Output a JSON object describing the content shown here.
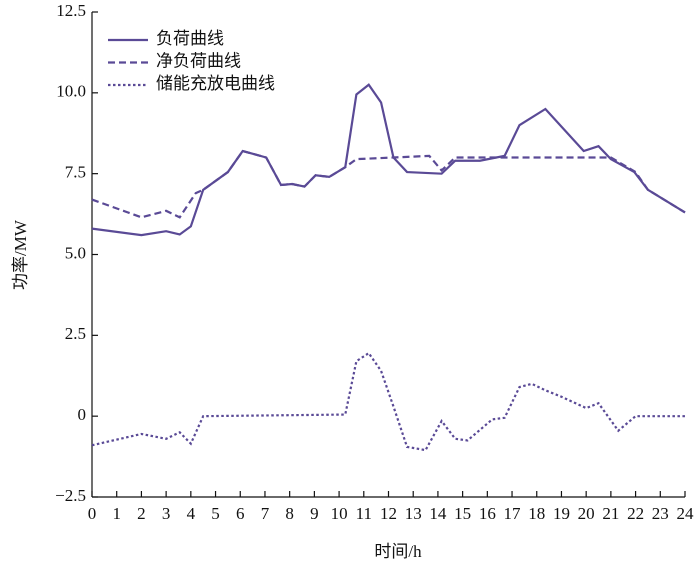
{
  "chart_data": {
    "type": "line",
    "xlabel": "时间/h",
    "ylabel": "功率/MW",
    "xlim": [
      0,
      24
    ],
    "xticks": [
      0,
      1,
      2,
      3,
      4,
      5,
      6,
      7,
      8,
      9,
      10,
      11,
      12,
      13,
      14,
      15,
      16,
      17,
      18,
      19,
      20,
      21,
      22,
      23,
      24
    ],
    "ylim": [
      -2.5,
      12.5
    ],
    "yticks": [
      {
        "value": -2.5,
        "label": "−2.5"
      },
      0,
      2.5,
      {
        "value": 5,
        "label": "5.0"
      },
      7.5,
      {
        "value": 10,
        "label": "10.0"
      },
      12.5
    ],
    "legend": "upper left",
    "series": [
      {
        "name": "负荷曲线",
        "color": "#5a4a96",
        "style": "solid",
        "x": [
          0,
          2,
          3,
          3.55,
          4,
          4.5,
          5.5,
          6.1,
          7.05,
          7.65,
          8.1,
          8.6,
          9.05,
          9.6,
          10.25,
          10.7,
          11.2,
          11.7,
          12.2,
          12.75,
          14.15,
          14.7,
          15.7,
          16.7,
          17.3,
          18.35,
          19.9,
          20.5,
          21,
          21.95,
          22.5,
          24
        ],
        "values": [
          5.8,
          5.6,
          5.72,
          5.62,
          5.87,
          7.0,
          7.55,
          8.2,
          8.0,
          7.15,
          7.18,
          7.1,
          7.45,
          7.4,
          7.7,
          9.95,
          10.25,
          9.7,
          8.0,
          7.55,
          7.5,
          7.9,
          7.9,
          8.05,
          9.0,
          9.5,
          8.2,
          8.35,
          7.95,
          7.55,
          7.0,
          6.3
        ]
      },
      {
        "name": "净负荷曲线",
        "color": "#5a4a96",
        "style": "dashed",
        "x": [
          0,
          2,
          3,
          3.55,
          4.2,
          4.5,
          5.5,
          6.1,
          7.05,
          7.65,
          8.1,
          8.6,
          9.05,
          9.6,
          10.25,
          10.7,
          12.2,
          13.65,
          14.15,
          14.7,
          21,
          22,
          22.5,
          24
        ],
        "values": [
          6.7,
          6.15,
          6.35,
          6.15,
          6.9,
          7.0,
          7.55,
          8.2,
          8.0,
          7.15,
          7.18,
          7.1,
          7.45,
          7.4,
          7.7,
          7.95,
          8.0,
          8.05,
          7.6,
          8.0,
          8.0,
          7.55,
          7.0,
          6.3
        ]
      },
      {
        "name": "储能充放电曲线",
        "color": "#5a4a96",
        "style": "dotted",
        "x": [
          0,
          2,
          3,
          3.55,
          4,
          4.5,
          10.25,
          10.7,
          11.2,
          11.7,
          12.2,
          12.75,
          13.5,
          14.15,
          14.7,
          15.2,
          16.2,
          16.7,
          17.3,
          17.8,
          18.35,
          19,
          20,
          20.5,
          21.3,
          22,
          24
        ],
        "values": [
          -0.9,
          -0.55,
          -0.7,
          -0.5,
          -0.85,
          0,
          0.05,
          1.7,
          1.95,
          1.4,
          0.3,
          -0.95,
          -1.05,
          -0.15,
          -0.7,
          -0.75,
          -0.1,
          -0.05,
          0.9,
          1.0,
          0.8,
          0.6,
          0.25,
          0.4,
          -0.45,
          0,
          0
        ]
      }
    ]
  }
}
